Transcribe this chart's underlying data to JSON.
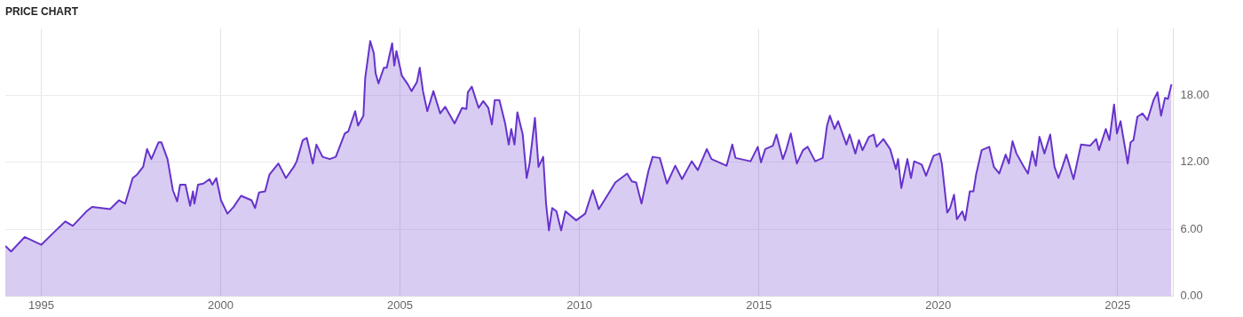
{
  "chart_data": {
    "type": "area",
    "title": "PRICE CHART",
    "x": [
      1994.0,
      1994.16,
      1994.54,
      1995.0,
      1995.38,
      1995.67,
      1995.88,
      1996.26,
      1996.42,
      1996.92,
      1997.17,
      1997.34,
      1997.55,
      1997.67,
      1997.84,
      1997.95,
      1998.07,
      1998.27,
      1998.35,
      1998.52,
      1998.67,
      1998.79,
      1998.87,
      1999.02,
      1999.15,
      1999.23,
      1999.27,
      1999.37,
      1999.52,
      1999.69,
      1999.77,
      1999.88,
      2000.01,
      2000.19,
      2000.36,
      2000.57,
      2000.86,
      2000.96,
      2001.07,
      2001.24,
      2001.36,
      2001.61,
      2001.82,
      2002.04,
      2002.12,
      2002.29,
      2002.4,
      2002.57,
      2002.67,
      2002.84,
      2003.04,
      2003.21,
      2003.46,
      2003.56,
      2003.75,
      2003.83,
      2003.98,
      2004.03,
      2004.17,
      2004.27,
      2004.32,
      2004.4,
      2004.55,
      2004.63,
      2004.78,
      2004.84,
      2004.9,
      2005.05,
      2005.22,
      2005.32,
      2005.47,
      2005.55,
      2005.64,
      2005.76,
      2005.93,
      2006.12,
      2006.26,
      2006.52,
      2006.73,
      2006.85,
      2006.89,
      2007.0,
      2007.19,
      2007.32,
      2007.46,
      2007.56,
      2007.64,
      2007.77,
      2007.93,
      2008.03,
      2008.1,
      2008.19,
      2008.27,
      2008.42,
      2008.53,
      2008.61,
      2008.76,
      2008.86,
      2008.99,
      2009.07,
      2009.15,
      2009.24,
      2009.36,
      2009.49,
      2009.61,
      2009.91,
      2010.16,
      2010.37,
      2010.54,
      2010.83,
      2011.0,
      2011.33,
      2011.46,
      2011.58,
      2011.73,
      2011.92,
      2012.04,
      2012.24,
      2012.44,
      2012.67,
      2012.86,
      2013.13,
      2013.3,
      2013.55,
      2013.68,
      2014.1,
      2014.26,
      2014.35,
      2014.77,
      2014.97,
      2015.06,
      2015.18,
      2015.39,
      2015.49,
      2015.67,
      2015.77,
      2015.89,
      2016.06,
      2016.23,
      2016.36,
      2016.57,
      2016.78,
      2016.9,
      2016.98,
      2017.11,
      2017.21,
      2017.44,
      2017.53,
      2017.69,
      2017.79,
      2017.89,
      2018.07,
      2018.2,
      2018.28,
      2018.47,
      2018.66,
      2018.82,
      2018.88,
      2018.97,
      2019.14,
      2019.24,
      2019.33,
      2019.54,
      2019.66,
      2019.87,
      2020.04,
      2020.1,
      2020.25,
      2020.33,
      2020.44,
      2020.52,
      2020.67,
      2020.75,
      2020.88,
      2020.98,
      2021.06,
      2021.21,
      2021.42,
      2021.55,
      2021.7,
      2021.88,
      2021.97,
      2022.07,
      2022.18,
      2022.37,
      2022.5,
      2022.62,
      2022.72,
      2022.82,
      2022.96,
      2023.12,
      2023.24,
      2023.35,
      2023.47,
      2023.57,
      2023.77,
      2023.98,
      2024.23,
      2024.4,
      2024.48,
      2024.67,
      2024.77,
      2024.9,
      2024.98,
      2025.08,
      2025.28,
      2025.36,
      2025.44,
      2025.55,
      2025.69,
      2025.83,
      2026.0,
      2026.11,
      2026.21,
      2026.32,
      2026.4,
      2026.5
    ],
    "series": [
      {
        "color": "#6633cc",
        "values": [
          4.5,
          4.0,
          5.3,
          4.6,
          5.8,
          6.7,
          6.3,
          7.6,
          8.0,
          7.8,
          8.6,
          8.3,
          10.6,
          10.9,
          11.6,
          13.2,
          12.3,
          13.8,
          13.8,
          12.3,
          9.5,
          8.5,
          10.0,
          10.0,
          8.1,
          9.4,
          8.3,
          10.0,
          10.1,
          10.5,
          10.0,
          10.6,
          8.6,
          7.4,
          8.0,
          9.0,
          8.6,
          7.9,
          9.3,
          9.4,
          10.9,
          11.9,
          10.6,
          11.6,
          12.1,
          14.0,
          14.2,
          11.9,
          13.6,
          12.5,
          12.3,
          12.5,
          14.6,
          14.8,
          16.6,
          15.3,
          16.2,
          19.6,
          22.9,
          21.8,
          20.0,
          19.1,
          20.5,
          20.5,
          22.7,
          20.7,
          22.0,
          19.8,
          19.0,
          18.4,
          19.2,
          20.5,
          18.4,
          16.6,
          18.4,
          16.4,
          17.0,
          15.5,
          16.9,
          16.8,
          18.3,
          18.8,
          16.9,
          17.5,
          16.9,
          15.4,
          17.6,
          17.6,
          15.5,
          13.6,
          15.0,
          13.6,
          16.5,
          14.5,
          10.6,
          11.9,
          16.0,
          11.6,
          12.5,
          8.3,
          5.9,
          7.9,
          7.6,
          5.9,
          7.6,
          6.8,
          7.4,
          9.5,
          7.8,
          9.3,
          10.2,
          11.0,
          10.3,
          10.2,
          8.3,
          11.2,
          12.5,
          12.4,
          10.1,
          11.7,
          10.5,
          12.1,
          11.3,
          13.2,
          12.3,
          11.7,
          13.6,
          12.4,
          12.1,
          13.4,
          12.0,
          13.2,
          13.5,
          14.5,
          12.3,
          13.2,
          14.6,
          11.9,
          13.1,
          13.4,
          12.1,
          12.4,
          15.3,
          16.2,
          15.0,
          15.7,
          13.6,
          14.5,
          12.8,
          14.0,
          13.1,
          14.3,
          14.5,
          13.4,
          14.1,
          13.2,
          11.4,
          12.3,
          9.7,
          12.3,
          10.6,
          12.1,
          11.8,
          10.8,
          12.6,
          12.8,
          11.9,
          7.5,
          7.9,
          9.1,
          6.9,
          7.6,
          6.8,
          9.4,
          9.4,
          11.0,
          13.1,
          13.4,
          11.6,
          11.0,
          12.7,
          11.9,
          13.9,
          12.8,
          11.7,
          11.0,
          13.0,
          11.7,
          14.3,
          12.8,
          14.5,
          11.6,
          10.6,
          11.7,
          12.7,
          10.5,
          13.6,
          13.5,
          14.1,
          13.1,
          15.0,
          14.0,
          17.2,
          14.6,
          15.7,
          11.9,
          13.8,
          14.0,
          16.1,
          16.4,
          15.8,
          17.6,
          18.3,
          16.2,
          17.8,
          17.7,
          19.0
        ]
      }
    ],
    "xlim": [
      1994.0,
      2026.55
    ],
    "xticks": [
      1995,
      2000,
      2005,
      2010,
      2015,
      2020,
      2025
    ],
    "ylim": [
      0,
      24
    ],
    "yticks": [
      {
        "value": 0,
        "label": "0.00"
      },
      {
        "value": 6,
        "label": "6.00"
      },
      {
        "value": 12,
        "label": "12.00"
      },
      {
        "value": 18,
        "label": "18.00"
      }
    ],
    "grid": true,
    "legend": false,
    "marker": "none",
    "line_style": "solid"
  }
}
